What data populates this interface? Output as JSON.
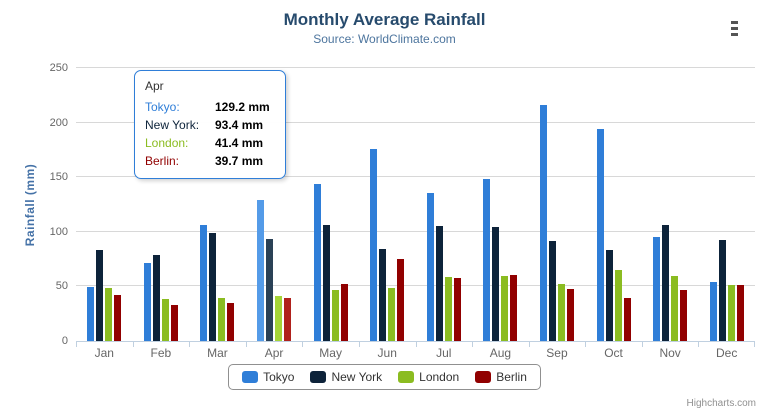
{
  "header": {
    "title": "Monthly Average Rainfall",
    "subtitle": "Source: WorldClimate.com"
  },
  "chart_data": {
    "type": "bar",
    "title": "Monthly Average Rainfall",
    "subtitle": "Source: WorldClimate.com",
    "categories": [
      "Jan",
      "Feb",
      "Mar",
      "Apr",
      "May",
      "Jun",
      "Jul",
      "Aug",
      "Sep",
      "Oct",
      "Nov",
      "Dec"
    ],
    "series": [
      {
        "name": "Tokyo",
        "color": "#2f7ed8",
        "hover_color": "#549be8",
        "values": [
          49.9,
          71.5,
          106.4,
          129.2,
          144.0,
          176.0,
          135.6,
          148.5,
          216.4,
          194.1,
          95.6,
          54.4
        ]
      },
      {
        "name": "New York",
        "color": "#0d233a",
        "hover_color": "#2a4156",
        "values": [
          83.6,
          78.8,
          98.5,
          93.4,
          106.0,
          84.5,
          105.0,
          104.3,
          91.2,
          83.5,
          106.6,
          92.3
        ]
      },
      {
        "name": "London",
        "color": "#8bbc21",
        "hover_color": "#a5d437",
        "values": [
          48.9,
          38.8,
          39.3,
          41.4,
          47.0,
          48.3,
          59.0,
          59.6,
          52.4,
          65.2,
          59.3,
          51.2
        ]
      },
      {
        "name": "Berlin",
        "color": "#910000",
        "hover_color": "#b0211c",
        "values": [
          42.4,
          33.2,
          34.5,
          39.7,
          52.6,
          75.5,
          57.4,
          60.4,
          47.6,
          39.1,
          46.8,
          51.1
        ]
      }
    ],
    "xlabel": "",
    "ylabel": "Rainfall (mm)",
    "ylim": [
      0,
      250
    ],
    "ytick_interval": 50,
    "yticks": [
      0,
      50,
      100,
      150,
      200,
      250
    ],
    "grid": true,
    "legend_position": "bottom",
    "hovered_category": "Apr",
    "hovered_category_index": 3
  },
  "tooltip": {
    "header": "Apr",
    "rows": [
      {
        "name": "Tokyo:",
        "value": "129.2 mm",
        "color": "#2f7ed8"
      },
      {
        "name": "New York:",
        "value": "93.4 mm",
        "color": "#0d233a"
      },
      {
        "name": "London:",
        "value": "41.4 mm",
        "color": "#8bbc21"
      },
      {
        "name": "Berlin:",
        "value": "39.7 mm",
        "color": "#910000"
      }
    ]
  },
  "legend": {
    "items": [
      "Tokyo",
      "New York",
      "London",
      "Berlin"
    ]
  },
  "credits": {
    "label": "Highcharts.com"
  }
}
